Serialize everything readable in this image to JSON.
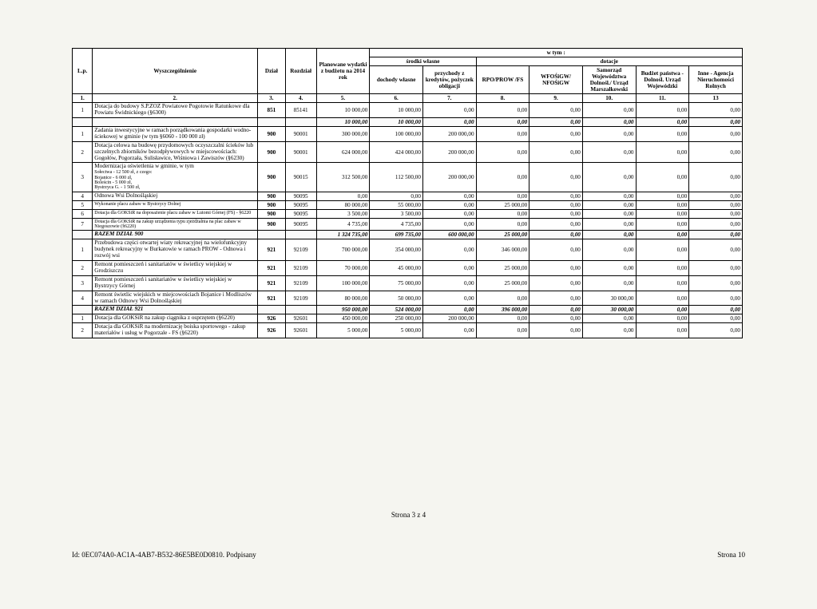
{
  "header": {
    "col_lp": "L.p.",
    "col_wyszcz": "Wyszczególnienie",
    "col_dzial": "Dział",
    "col_rozdzial": "Rozdział",
    "col_plan": "Planowane wydatki z budżetu na 2014 rok",
    "col_srodki_wlasne": "środki własne",
    "col_dochody": "dochody własne",
    "col_przychody": "przychody z kredytów, pożyczek obligacji",
    "col_wtym": "w tym :",
    "col_dotacje": "dotacje",
    "col_rpo": "RPO/PROW /FS",
    "col_wfos": "WFOŚiGW/ NFOŚiGW",
    "col_sam": "Samorząd Województwa Dolnośl./ Urząd Marszałkowski",
    "col_bud": "Budżet państwa - Dolnośl. Urząd Wojewódzki",
    "col_inne": "Inne - Agencja Nieruchomości Rolnych",
    "n1": "1.",
    "n2": "2.",
    "n3": "3.",
    "n4": "4.",
    "n5": "5.",
    "n6": "6.",
    "n7": "7.",
    "n8": "8.",
    "n9": "9.",
    "n10": "10.",
    "n11": "11.",
    "n13": "13"
  },
  "rows": [
    {
      "lp": "1",
      "desc": "Dotacja do budowy S.P.ZOZ Powiatowe Pogotowie Ratunkowe dla Powiatu Świdnickiego (§6300)",
      "dzial": "851",
      "roz": "85141",
      "plan": "10 000,00",
      "doch": "10 000,00",
      "przy": "0,00",
      "rpo": "0,00",
      "wfos": "0,00",
      "sam": "0,00",
      "bud": "0,00",
      "inne": "0,00"
    },
    {
      "razem": true,
      "desc": "",
      "dzial": "",
      "roz": "",
      "plan": "10 000,00",
      "doch": "10 000,00",
      "przy": "0,00",
      "rpo": "0,00",
      "wfos": "0,00",
      "sam": "0,00",
      "bud": "0,00",
      "inne": "0,00"
    },
    {
      "lp": "1",
      "desc": "Zadania inwestycyjne w ramach porządkowania gospodarki wodno-ściekowej w gminie (w tym §6060 - 100 000 zł)",
      "dzial": "900",
      "roz": "90001",
      "plan": "300 000,00",
      "doch": "100 000,00",
      "przy": "200 000,00",
      "rpo": "0,00",
      "wfos": "0,00",
      "sam": "0,00",
      "bud": "0,00",
      "inne": "0,00"
    },
    {
      "lp": "2",
      "desc": "Dotacja celowa na budowę przydomowych oczyszczalni ścieków lub szczelnych zbiorników bezodpływowych w miejscowościach: Gogołów, Pogorzała, Sulisławice, Wiśniowa i Zawiszów (§6230)",
      "dzial": "900",
      "roz": "90001",
      "plan": "624 000,00",
      "doch": "424 000,00",
      "przy": "200 000,00",
      "rpo": "0,00",
      "wfos": "0,00",
      "sam": "0,00",
      "bud": "0,00",
      "inne": "0,00"
    },
    {
      "lp": "3",
      "desc": "Modernizacja oświetlenia w gminie, w tym",
      "sub": "Sołectwa - 12 500 zł, z czego:\nBojanice - 6 000 zł,\nBoleścin - 5 000 zł,\nBystrzyca G. - 1 500 zł,",
      "dzial": "900",
      "roz": "90015",
      "plan": "312 500,00",
      "doch": "112 500,00",
      "przy": "200 000,00",
      "rpo": "0,00",
      "wfos": "0,00",
      "sam": "0,00",
      "bud": "0,00",
      "inne": "0,00"
    },
    {
      "lp": "4",
      "desc": "Odnowa Wsi Dolnośląskiej",
      "dzial": "900",
      "roz": "90095",
      "plan": "0,00",
      "doch": "0,00",
      "przy": "0,00",
      "rpo": "0,00",
      "wfos": "0,00",
      "sam": "0,00",
      "bud": "0,00",
      "inne": "0,00"
    },
    {
      "lp": "5",
      "desc": "Wykonanie placu zabaw w Bystrzycy Dolnej",
      "dzial": "900",
      "roz": "90095",
      "plan": "80 000,00",
      "doch": "55 000,00",
      "przy": "0,00",
      "rpo": "25 000,00",
      "wfos": "0,00",
      "sam": "0,00",
      "bud": "0,00",
      "inne": "0,00",
      "small": true
    },
    {
      "lp": "6",
      "desc": "Dotacja dla GOKSiR na doposażenie placu zabaw w Lutomi Górnej (FS) - §6220",
      "dzial": "900",
      "roz": "90095",
      "plan": "3 500,00",
      "doch": "3 500,00",
      "przy": "0,00",
      "rpo": "0,00",
      "wfos": "0,00",
      "sam": "0,00",
      "bud": "0,00",
      "inne": "0,00",
      "small": true
    },
    {
      "lp": "7",
      "desc": "Dotacja dla GOKSiR na zakup urządzenia typu zjeżdżalnia na plac zabaw w Niegoszowie (§6220)",
      "dzial": "900",
      "roz": "90095",
      "plan": "4 735,00",
      "doch": "4 735,00",
      "przy": "0,00",
      "rpo": "0,00",
      "wfos": "0,00",
      "sam": "0,00",
      "bud": "0,00",
      "inne": "0,00",
      "small": true
    },
    {
      "razem": true,
      "desc": "RAZEM DZIAŁ 900",
      "dzial": "",
      "roz": "",
      "plan": "1 324 735,00",
      "doch": "699 735,00",
      "przy": "600 000,00",
      "rpo": "25 000,00",
      "wfos": "0,00",
      "sam": "0,00",
      "bud": "0,00",
      "inne": "0,00"
    },
    {
      "lp": "1",
      "desc": "Przebudowa części otwartej wiaty rekreacyjnej na wielofunkcyjny budynek rekreacyjny w Burkatowie w ramach PROW - Odnowa i rozwój wsi",
      "dzial": "921",
      "roz": "92109",
      "plan": "700 000,00",
      "doch": "354 000,00",
      "przy": "0,00",
      "rpo": "346 000,00",
      "wfos": "0,00",
      "sam": "0,00",
      "bud": "0,00",
      "inne": "0,00"
    },
    {
      "lp": "2",
      "desc": "Remont pomieszczeń i sanitariatów w świetlicy wiejskiej w Grodziszczu",
      "dzial": "921",
      "roz": "92109",
      "plan": "70 000,00",
      "doch": "45 000,00",
      "przy": "0,00",
      "rpo": "25 000,00",
      "wfos": "0,00",
      "sam": "0,00",
      "bud": "0,00",
      "inne": "0,00"
    },
    {
      "lp": "3",
      "desc": "Remont pomieszczeń i sanitariatów w świetlicy wiejskiej w Bystrzycy Górnej",
      "dzial": "921",
      "roz": "92109",
      "plan": "100 000,00",
      "doch": "75 000,00",
      "przy": "0,00",
      "rpo": "25 000,00",
      "wfos": "0,00",
      "sam": "0,00",
      "bud": "0,00",
      "inne": "0,00"
    },
    {
      "lp": "4",
      "desc": "Remont świetlic wiejskich w miejcowościach Bojanice i Modliszów w ramach Odnowy Wsi Dolnośląskiej",
      "dzial": "921",
      "roz": "92109",
      "plan": "80 000,00",
      "doch": "50 000,00",
      "przy": "0,00",
      "rpo": "0,00",
      "wfos": "0,00",
      "sam": "30 000,00",
      "bud": "0,00",
      "inne": "0,00"
    },
    {
      "razem": true,
      "desc": "RAZEM DZIAŁ 921",
      "dzial": "",
      "roz": "",
      "plan": "950 000,00",
      "doch": "524 000,00",
      "przy": "0,00",
      "rpo": "396 000,00",
      "wfos": "0,00",
      "sam": "30 000,00",
      "bud": "0,00",
      "inne": "0,00"
    },
    {
      "lp": "1",
      "desc": "Dotacja dla GOKSiR na zakup ciągnika z osprzętem (§6220)",
      "dzial": "926",
      "roz": "92601",
      "plan": "450 000,00",
      "doch": "250 000,00",
      "przy": "200 000,00",
      "rpo": "0,00",
      "wfos": "0,00",
      "sam": "0,00",
      "bud": "0,00",
      "inne": "0,00"
    },
    {
      "lp": "2",
      "desc": "Dotacja dla GOKSiR na modernizację boiska sportowego - zakup materiałów i usług w Pogorzale - FS (§6220)",
      "dzial": "926",
      "roz": "92601",
      "plan": "5 000,00",
      "doch": "5 000,00",
      "przy": "0,00",
      "rpo": "0,00",
      "wfos": "0,00",
      "sam": "0,00",
      "bud": "0,00",
      "inne": "0,00"
    }
  ],
  "footer": {
    "page_num": "Strona 3 z 4",
    "id": "Id: 0EC074A0-AC1A-4AB7-B532-86E5BE0D0810. Podpisany",
    "strona": "Strona 10"
  }
}
